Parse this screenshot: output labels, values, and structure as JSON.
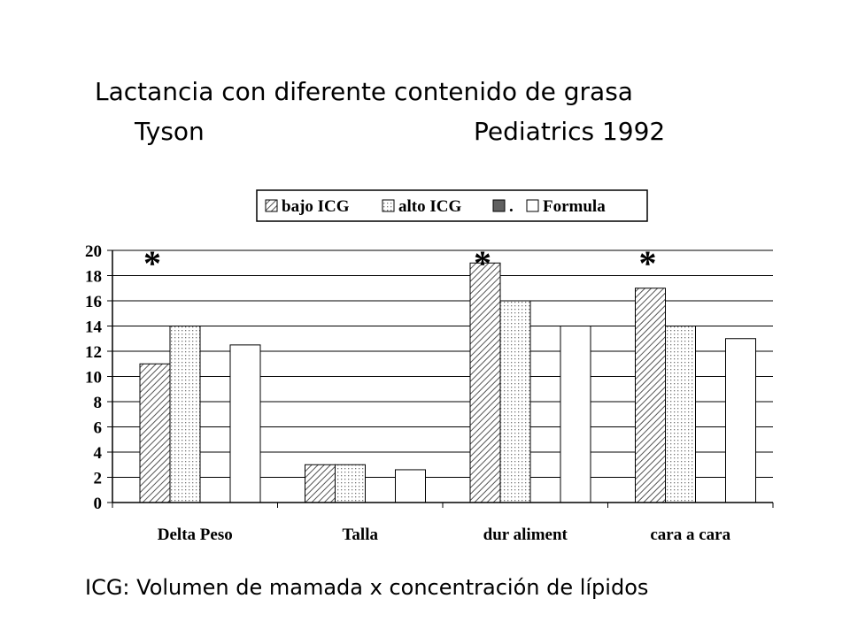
{
  "chart_data": {
    "type": "bar",
    "title": "Lactancia con diferente contenido de grasa",
    "subtitle_left": "Tyson",
    "subtitle_right": "Pediatrics 1992",
    "note": "ICG: Volumen de mamada x concentración de lípidos",
    "categories": [
      "Delta Peso",
      "Talla",
      "dur aliment",
      "cara a cara"
    ],
    "series": [
      {
        "name": "bajo ICG",
        "color": "#808080",
        "pattern": "hatch",
        "values": [
          11,
          3,
          19,
          17
        ]
      },
      {
        "name": "alto ICG",
        "color": "#808080",
        "pattern": "dots",
        "values": [
          14,
          3,
          16,
          14
        ]
      },
      {
        "name": ".",
        "color": "#606060",
        "pattern": "solid",
        "values": [
          null,
          null,
          null,
          null
        ]
      },
      {
        "name": "Formula",
        "color": "#ffffff",
        "pattern": "solid",
        "values": [
          12.5,
          2.6,
          14,
          13
        ]
      }
    ],
    "annotations": [
      {
        "text": "*",
        "category": 0
      },
      {
        "text": "*",
        "category": 2
      },
      {
        "text": "*",
        "category": 3
      }
    ],
    "ylim": [
      0,
      20
    ],
    "yticks": [
      0,
      2,
      4,
      6,
      8,
      10,
      12,
      14,
      16,
      18,
      20
    ],
    "grid": true,
    "legend": "top"
  }
}
